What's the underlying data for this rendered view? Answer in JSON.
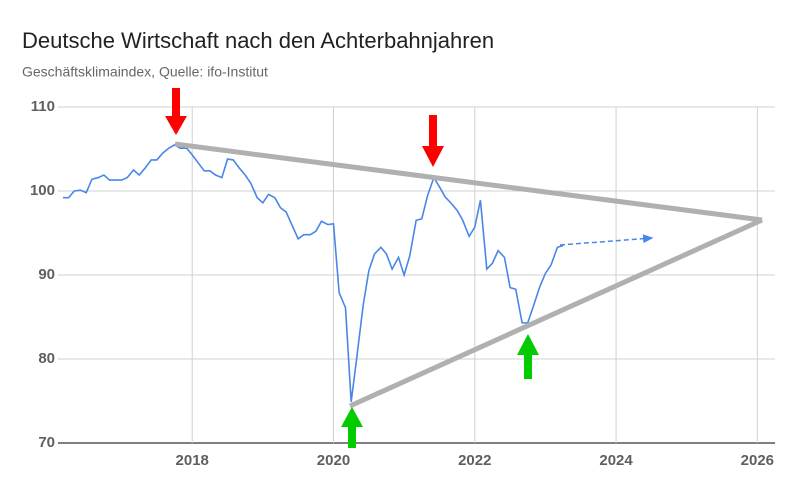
{
  "chart_data": {
    "type": "line",
    "title": "Deutsche Wirtschaft nach den Achterbahnjahren",
    "subtitle": "Geschäftsklimaindex, Quelle: ifo-Institut",
    "x": [
      2016.17,
      2016.25,
      2016.33,
      2016.42,
      2016.5,
      2016.58,
      2016.67,
      2016.75,
      2016.83,
      2016.92,
      2017.0,
      2017.08,
      2017.17,
      2017.25,
      2017.33,
      2017.42,
      2017.5,
      2017.58,
      2017.67,
      2017.75,
      2017.83,
      2017.92,
      2018.0,
      2018.08,
      2018.17,
      2018.25,
      2018.33,
      2018.42,
      2018.5,
      2018.58,
      2018.67,
      2018.75,
      2018.83,
      2018.92,
      2019.0,
      2019.08,
      2019.17,
      2019.25,
      2019.33,
      2019.42,
      2019.5,
      2019.58,
      2019.67,
      2019.75,
      2019.83,
      2019.92,
      2020.0,
      2020.08,
      2020.17,
      2020.25,
      2020.33,
      2020.42,
      2020.5,
      2020.58,
      2020.67,
      2020.75,
      2020.83,
      2020.92,
      2021.0,
      2021.08,
      2021.17,
      2021.25,
      2021.33,
      2021.42,
      2021.5,
      2021.58,
      2021.67,
      2021.75,
      2021.83,
      2021.92,
      2022.0,
      2022.08,
      2022.17,
      2022.25,
      2022.33,
      2022.42,
      2022.5,
      2022.58,
      2022.67,
      2022.75,
      2022.83,
      2022.92,
      2023.0,
      2023.08,
      2023.17,
      2023.25
    ],
    "series": [
      {
        "color": "#4a86e8",
        "values": [
          99.2,
          99.2,
          100,
          100.1,
          99.8,
          101.4,
          101.6,
          101.9,
          101.3,
          101.3,
          101.3,
          101.6,
          102.5,
          101.9,
          102.7,
          103.7,
          103.7,
          104.5,
          105.1,
          105.5,
          105.1,
          105.1,
          104.3,
          103.4,
          102.4,
          102.4,
          101.9,
          101.6,
          103.8,
          103.7,
          102.7,
          101.9,
          100.9,
          99.2,
          98.6,
          99.6,
          99.2,
          98.0,
          97.5,
          95.8,
          94.3,
          94.8,
          94.8,
          95.2,
          96.4,
          96.0,
          96.1,
          87.9,
          86.1,
          74.9,
          80.2,
          86.4,
          90.5,
          92.5,
          93.3,
          92.5,
          90.7,
          92.1,
          90.0,
          92.3,
          96.5,
          96.7,
          99.4,
          101.6,
          100.5,
          99.3,
          98.5,
          97.7,
          96.5,
          94.6,
          95.7,
          98.9,
          90.7,
          91.4,
          92.9,
          92.1,
          88.5,
          88.3,
          84.3,
          84.3,
          86.3,
          88.6,
          90.2,
          91.2,
          93.3,
          93.5
        ]
      }
    ],
    "xlim": [
      2016.1,
      2026.25
    ],
    "xticks": [
      2018,
      2020,
      2022,
      2024,
      2026
    ],
    "ylim": [
      70,
      110
    ],
    "yticks": [
      70,
      80,
      90,
      100,
      110
    ],
    "grid": true
  }
}
